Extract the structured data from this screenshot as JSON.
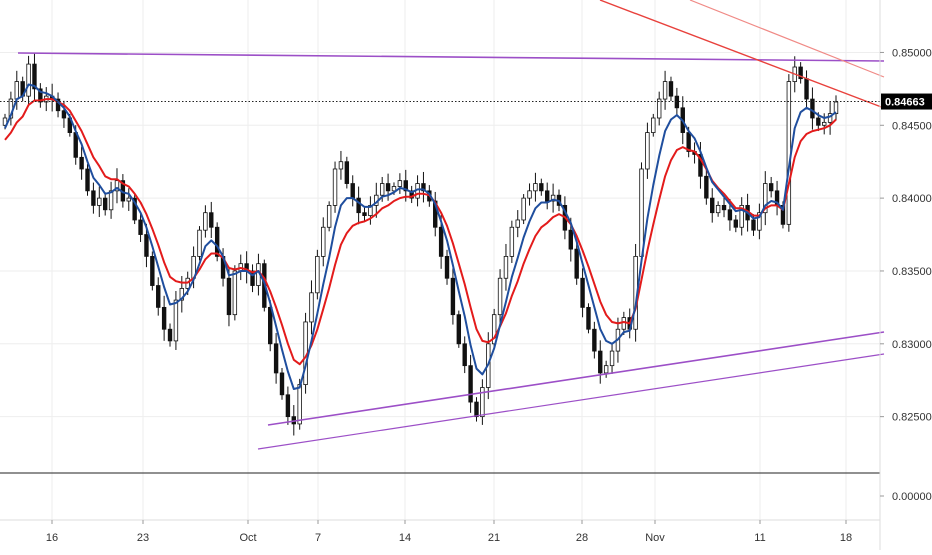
{
  "chart_data": {
    "type": "candlestick",
    "x_ticks": [
      "16",
      "23",
      "Oct",
      "7",
      "14",
      "21",
      "28",
      "Nov",
      "11",
      "18"
    ],
    "y_ticks": [
      "0.85000",
      "0.84500",
      "0.84000",
      "0.83500",
      "0.83000",
      "0.82500"
    ],
    "ylim": [
      0.8212,
      0.8536
    ],
    "last_price": 0.84663,
    "last_price_label": "0.84663",
    "indicator_pane": {
      "y_ticks": [
        "0.00000"
      ],
      "value": 0.0
    },
    "closes": [
      0.8455,
      0.8468,
      0.848,
      0.847,
      0.8492,
      0.8475,
      0.8466,
      0.847,
      0.8468,
      0.846,
      0.8455,
      0.8445,
      0.8428,
      0.842,
      0.8405,
      0.8395,
      0.84,
      0.8392,
      0.8405,
      0.8412,
      0.8398,
      0.84,
      0.8385,
      0.8375,
      0.836,
      0.834,
      0.8325,
      0.831,
      0.8302,
      0.833,
      0.8338,
      0.8345,
      0.836,
      0.8378,
      0.839,
      0.838,
      0.836,
      0.8345,
      0.832,
      0.835,
      0.8355,
      0.835,
      0.834,
      0.8355,
      0.8325,
      0.83,
      0.828,
      0.8265,
      0.825,
      0.8245,
      0.8272,
      0.8315,
      0.8335,
      0.836,
      0.838,
      0.8395,
      0.842,
      0.8425,
      0.841,
      0.84,
      0.839,
      0.8388,
      0.8395,
      0.8402,
      0.841,
      0.8405,
      0.8408,
      0.8412,
      0.8405,
      0.84,
      0.841,
      0.8405,
      0.8398,
      0.838,
      0.836,
      0.8345,
      0.832,
      0.83,
      0.8285,
      0.826,
      0.825,
      0.827,
      0.83,
      0.832,
      0.8345,
      0.836,
      0.838,
      0.8385,
      0.84,
      0.8405,
      0.841,
      0.8405,
      0.8398,
      0.8402,
      0.8395,
      0.8378,
      0.8365,
      0.8345,
      0.8325,
      0.831,
      0.8295,
      0.828,
      0.8285,
      0.8295,
      0.831,
      0.8318,
      0.831,
      0.836,
      0.842,
      0.8445,
      0.8455,
      0.8468,
      0.848,
      0.847,
      0.8462,
      0.8445,
      0.8432,
      0.843,
      0.8415,
      0.84,
      0.839,
      0.8395,
      0.8392,
      0.8385,
      0.838,
      0.8395,
      0.8385,
      0.8378,
      0.839,
      0.841,
      0.8405,
      0.8395,
      0.8382,
      0.848,
      0.849,
      0.8482,
      0.8468,
      0.8455,
      0.845,
      0.8452,
      0.8458,
      0.8466
    ],
    "ema_fast": [
      0.8448,
      0.8457,
      0.8468,
      0.847,
      0.8478,
      0.8477,
      0.8473,
      0.8472,
      0.847,
      0.8466,
      0.8462,
      0.8456,
      0.8446,
      0.8437,
      0.8425,
      0.8414,
      0.8409,
      0.8403,
      0.8404,
      0.8407,
      0.8404,
      0.8403,
      0.8397,
      0.839,
      0.838,
      0.8367,
      0.8353,
      0.8339,
      0.8327,
      0.8328,
      0.8331,
      0.8336,
      0.8344,
      0.8355,
      0.8367,
      0.8371,
      0.8367,
      0.836,
      0.8347,
      0.8348,
      0.835,
      0.835,
      0.8347,
      0.835,
      0.8342,
      0.8328,
      0.8312,
      0.8296,
      0.8281,
      0.8269,
      0.827,
      0.8285,
      0.8302,
      0.8321,
      0.8341,
      0.8359,
      0.838,
      0.8395,
      0.84,
      0.84,
      0.8397,
      0.8394,
      0.8394,
      0.8397,
      0.8401,
      0.8402,
      0.8404,
      0.8407,
      0.8406,
      0.8404,
      0.8406,
      0.8406,
      0.8403,
      0.8396,
      0.8384,
      0.8371,
      0.8354,
      0.8336,
      0.8319,
      0.8299,
      0.8283,
      0.8279,
      0.8286,
      0.8297,
      0.8313,
      0.8329,
      0.8346,
      0.8359,
      0.8373,
      0.8384,
      0.8393,
      0.8397,
      0.8397,
      0.8399,
      0.8398,
      0.8391,
      0.8383,
      0.837,
      0.8355,
      0.834,
      0.8325,
      0.831,
      0.8302,
      0.83,
      0.8303,
      0.8308,
      0.8309,
      0.8326,
      0.8357,
      0.8386,
      0.8409,
      0.8429,
      0.8446,
      0.8454,
      0.8457,
      0.8453,
      0.8446,
      0.8441,
      0.8432,
      0.8421,
      0.8411,
      0.8406,
      0.8401,
      0.8396,
      0.8391,
      0.8392,
      0.839,
      0.8386,
      0.8387,
      0.8395,
      0.8398,
      0.8397,
      0.8392,
      0.8421,
      0.8448,
      0.8459,
      0.8462,
      0.846,
      0.8457,
      0.8455,
      0.8456,
      0.8459
    ],
    "ema_slow": [
      0.844,
      0.8445,
      0.8452,
      0.8456,
      0.8464,
      0.8467,
      0.8467,
      0.8468,
      0.8468,
      0.8466,
      0.8464,
      0.846,
      0.8453,
      0.8446,
      0.8437,
      0.8428,
      0.8422,
      0.8415,
      0.8413,
      0.8413,
      0.841,
      0.8408,
      0.8403,
      0.8397,
      0.8389,
      0.8379,
      0.8368,
      0.8356,
      0.8346,
      0.8343,
      0.8342,
      0.8342,
      0.8345,
      0.8351,
      0.8358,
      0.8362,
      0.8362,
      0.8359,
      0.8352,
      0.8351,
      0.8352,
      0.8351,
      0.8349,
      0.835,
      0.8345,
      0.8336,
      0.8325,
      0.8313,
      0.83,
      0.8289,
      0.8286,
      0.8291,
      0.8299,
      0.831,
      0.8324,
      0.8338,
      0.8354,
      0.8368,
      0.8376,
      0.8381,
      0.8383,
      0.8384,
      0.8386,
      0.8389,
      0.8393,
      0.8395,
      0.8398,
      0.84,
      0.8401,
      0.8401,
      0.8403,
      0.8403,
      0.8402,
      0.8397,
      0.839,
      0.8381,
      0.8369,
      0.8355,
      0.8341,
      0.8325,
      0.831,
      0.8302,
      0.8301,
      0.8304,
      0.8312,
      0.8321,
      0.8333,
      0.8343,
      0.8355,
      0.8365,
      0.8374,
      0.838,
      0.8383,
      0.8387,
      0.8389,
      0.8387,
      0.8382,
      0.8374,
      0.8364,
      0.8353,
      0.8341,
      0.8329,
      0.832,
      0.8315,
      0.8314,
      0.8315,
      0.8314,
      0.8324,
      0.8344,
      0.8364,
      0.8382,
      0.8399,
      0.8415,
      0.8426,
      0.8433,
      0.8435,
      0.8433,
      0.8432,
      0.8427,
      0.842,
      0.8412,
      0.8407,
      0.8403,
      0.8398,
      0.8393,
      0.8393,
      0.8391,
      0.8388,
      0.8388,
      0.8393,
      0.8395,
      0.8395,
      0.8392,
      0.841,
      0.8428,
      0.8439,
      0.8444,
      0.8446,
      0.8447,
      0.8448,
      0.845,
      0.8454
    ],
    "colors": {
      "candle": "#111111",
      "ema_fast": "#1f4e9e",
      "ema_slow": "#e31b1b",
      "channel": "#9c4fc7",
      "trend_red": "#e8413c",
      "trend_red_faint": "#f08a86",
      "grid": "#eeeeee",
      "price_tag": "#000000",
      "price_tag_text": "#ffffff",
      "axis_text": "#333333"
    }
  }
}
